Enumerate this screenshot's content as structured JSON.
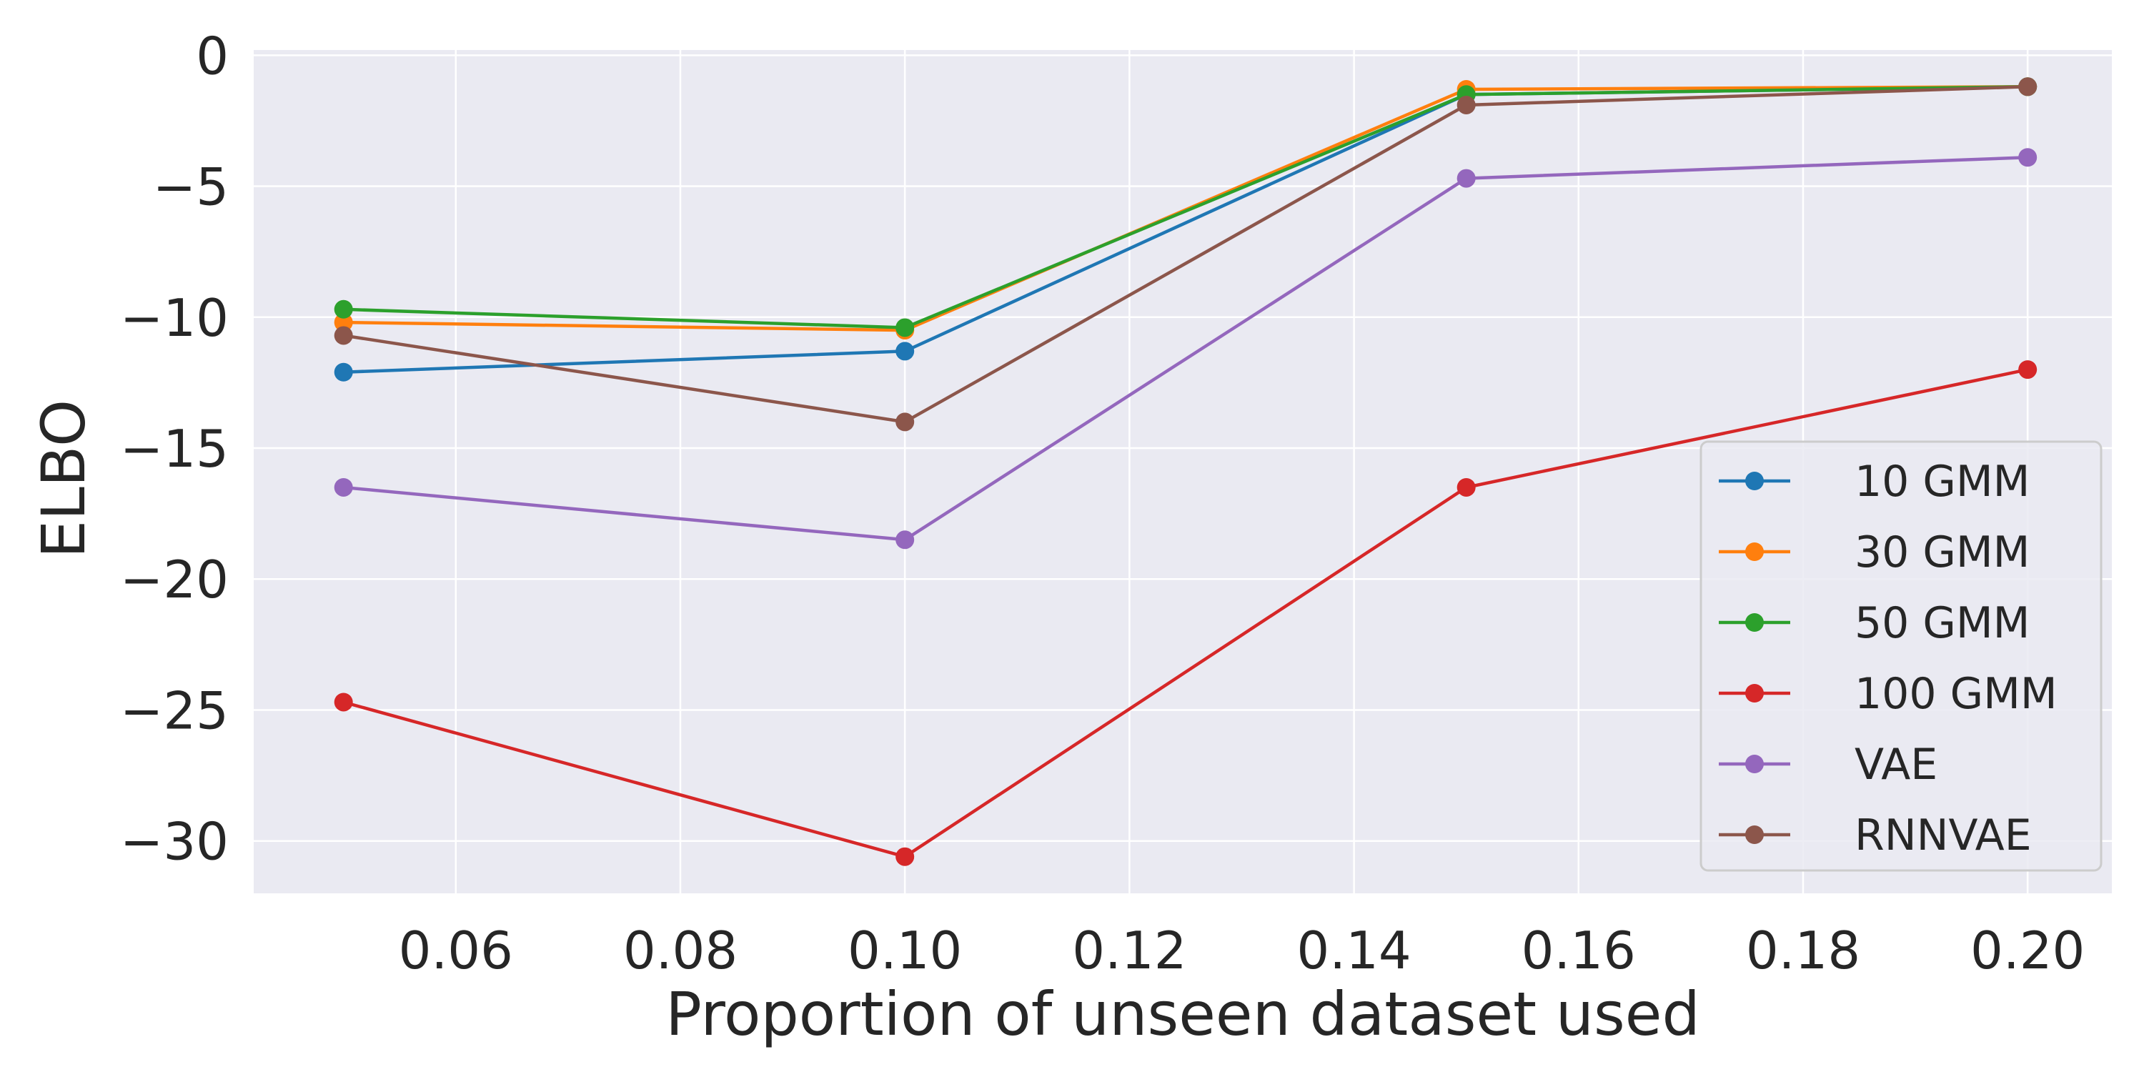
{
  "chart_data": {
    "type": "line",
    "title": "",
    "xlabel": "Proportion of unseen dataset used",
    "ylabel": "ELBO",
    "x": [
      0.05,
      0.1,
      0.15,
      0.2
    ],
    "xlim": [
      0.042,
      0.2075
    ],
    "ylim": [
      -32,
      0.2
    ],
    "xticks": [
      0.06,
      0.08,
      0.1,
      0.12,
      0.14,
      0.16,
      0.18,
      0.2
    ],
    "xtick_labels": [
      "0.06",
      "0.08",
      "0.10",
      "0.12",
      "0.14",
      "0.16",
      "0.18",
      "0.20"
    ],
    "yticks": [
      0,
      -5,
      -10,
      -15,
      -20,
      -25,
      -30
    ],
    "ytick_labels": [
      "0",
      "−5",
      "−10",
      "−15",
      "−20",
      "−25",
      "−30"
    ],
    "grid": true,
    "legend_position": "lower-right",
    "series": [
      {
        "name": "10 GMM",
        "color": "#1f77b4",
        "values": [
          -12.1,
          -11.3,
          -1.5,
          -1.2
        ]
      },
      {
        "name": "30 GMM",
        "color": "#ff7f0e",
        "values": [
          -10.2,
          -10.5,
          -1.3,
          -1.2
        ]
      },
      {
        "name": "50 GMM",
        "color": "#2ca02c",
        "values": [
          -9.7,
          -10.4,
          -1.5,
          -1.2
        ]
      },
      {
        "name": "100 GMM",
        "color": "#d62728",
        "values": [
          -24.7,
          -30.6,
          -16.5,
          -12.0
        ]
      },
      {
        "name": "VAE",
        "color": "#9467bd",
        "values": [
          -16.5,
          -18.5,
          -4.7,
          -3.9
        ]
      },
      {
        "name": "RNNVAE",
        "color": "#8c564b",
        "values": [
          -10.7,
          -14.0,
          -1.9,
          -1.2
        ]
      }
    ]
  }
}
